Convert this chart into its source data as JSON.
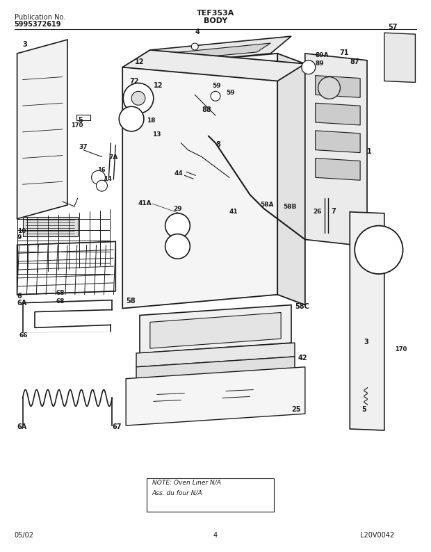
{
  "title": "TEF353A",
  "subtitle": "BODY",
  "pub_no_label": "Publication No.",
  "pub_no": "5995372619",
  "footer_date": "05/02",
  "footer_page": "4",
  "logo_text": "L20V0042",
  "note_text": "NOTE: Oven Liner N/A\nAss. du four N/A",
  "bg_color": "#ffffff",
  "line_color": "#1a1a1a",
  "text_color": "#1a1a1a",
  "fig_width": 6.2,
  "fig_height": 7.94,
  "dpi": 100
}
